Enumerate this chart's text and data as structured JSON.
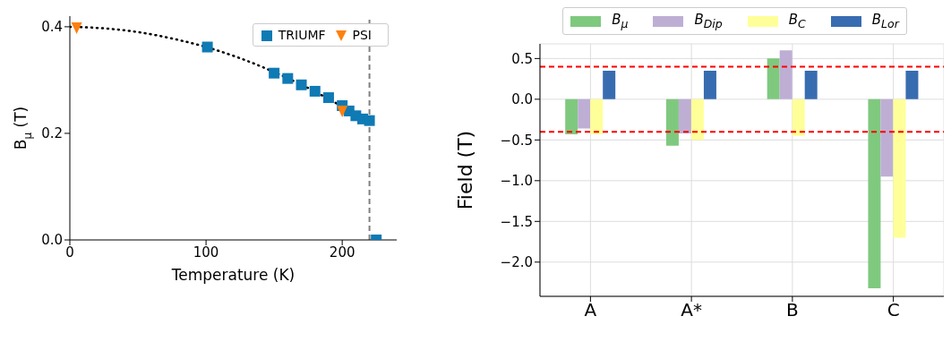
{
  "chart_data": [
    {
      "type": "scatter",
      "xlabel": "Temperature (K)",
      "ylabel": "B$_{μ}$ (T)",
      "xlim": [
        0,
        240
      ],
      "xticks": [
        0,
        100,
        200
      ],
      "ylim": [
        0,
        0.42
      ],
      "yticks": [
        {
          "value": 0,
          "label": "0.0"
        },
        {
          "value": 0.2,
          "label": "0.2"
        },
        {
          "value": 0.4,
          "label": "0.4"
        }
      ],
      "legend": "top right",
      "series": [
        {
          "name": "TRIUMF",
          "color": "#0f7ab4",
          "marker": "square",
          "x": [
            101,
            150,
            160,
            170,
            180,
            190,
            200,
            205,
            210,
            215,
            220,
            225
          ],
          "values": [
            0.362,
            0.313,
            0.303,
            0.291,
            0.279,
            0.267,
            0.252,
            0.242,
            0.233,
            0.227,
            0.224,
            0.0
          ]
        },
        {
          "name": "PSI",
          "color": "#ff7f0e",
          "marker": "triangle",
          "x": [
            5,
            200
          ],
          "values": [
            0.398,
            0.242
          ]
        },
        {
          "type": "line",
          "color": "#000000",
          "line_style": "dotted",
          "marker": "none",
          "x": [
            0,
            25,
            50,
            75,
            100,
            125,
            150,
            175,
            200,
            205
          ],
          "values": [
            0.4,
            0.397,
            0.39,
            0.378,
            0.362,
            0.341,
            0.315,
            0.285,
            0.251,
            0.245
          ]
        }
      ],
      "ref_lines": [
        {
          "axis": "x",
          "value": 220,
          "color": "#808080",
          "line_style": "dashed"
        }
      ]
    },
    {
      "type": "bar",
      "ylabel": "Field (T)",
      "categories": [
        "A",
        "A*",
        "B",
        "C"
      ],
      "ylim": [
        -2.42,
        0.68
      ],
      "yticks": [
        {
          "value": -2,
          "label": "−2.0"
        },
        {
          "value": -1.5,
          "label": "−1.5"
        },
        {
          "value": -1,
          "label": "−1.0"
        },
        {
          "value": -0.5,
          "label": "−0.5"
        },
        {
          "value": 0,
          "label": "0.0"
        },
        {
          "value": 0.5,
          "label": "0.5"
        }
      ],
      "grid": true,
      "legend": "top",
      "series": [
        {
          "name": "B$_{μ}$",
          "color": "#7fc97f",
          "values": [
            -0.43,
            -0.57,
            0.5,
            -2.32
          ]
        },
        {
          "name": "B$_{Dip}$",
          "color": "#beaed4",
          "values": [
            -0.36,
            -0.42,
            0.6,
            -0.95
          ]
        },
        {
          "name": "B$_{C}$",
          "color": "#ffff99",
          "values": [
            -0.43,
            -0.5,
            -0.45,
            -1.7
          ]
        },
        {
          "name": "B$_{Lor}$",
          "color": "#386cb0",
          "values": [
            0.35,
            0.35,
            0.35,
            0.35
          ]
        }
      ],
      "ref_lines": [
        {
          "axis": "y",
          "value": 0.4,
          "color": "#ff0000",
          "line_style": "dashed"
        },
        {
          "axis": "y",
          "value": -0.4,
          "color": "#ff0000",
          "line_style": "dashed"
        }
      ]
    }
  ]
}
